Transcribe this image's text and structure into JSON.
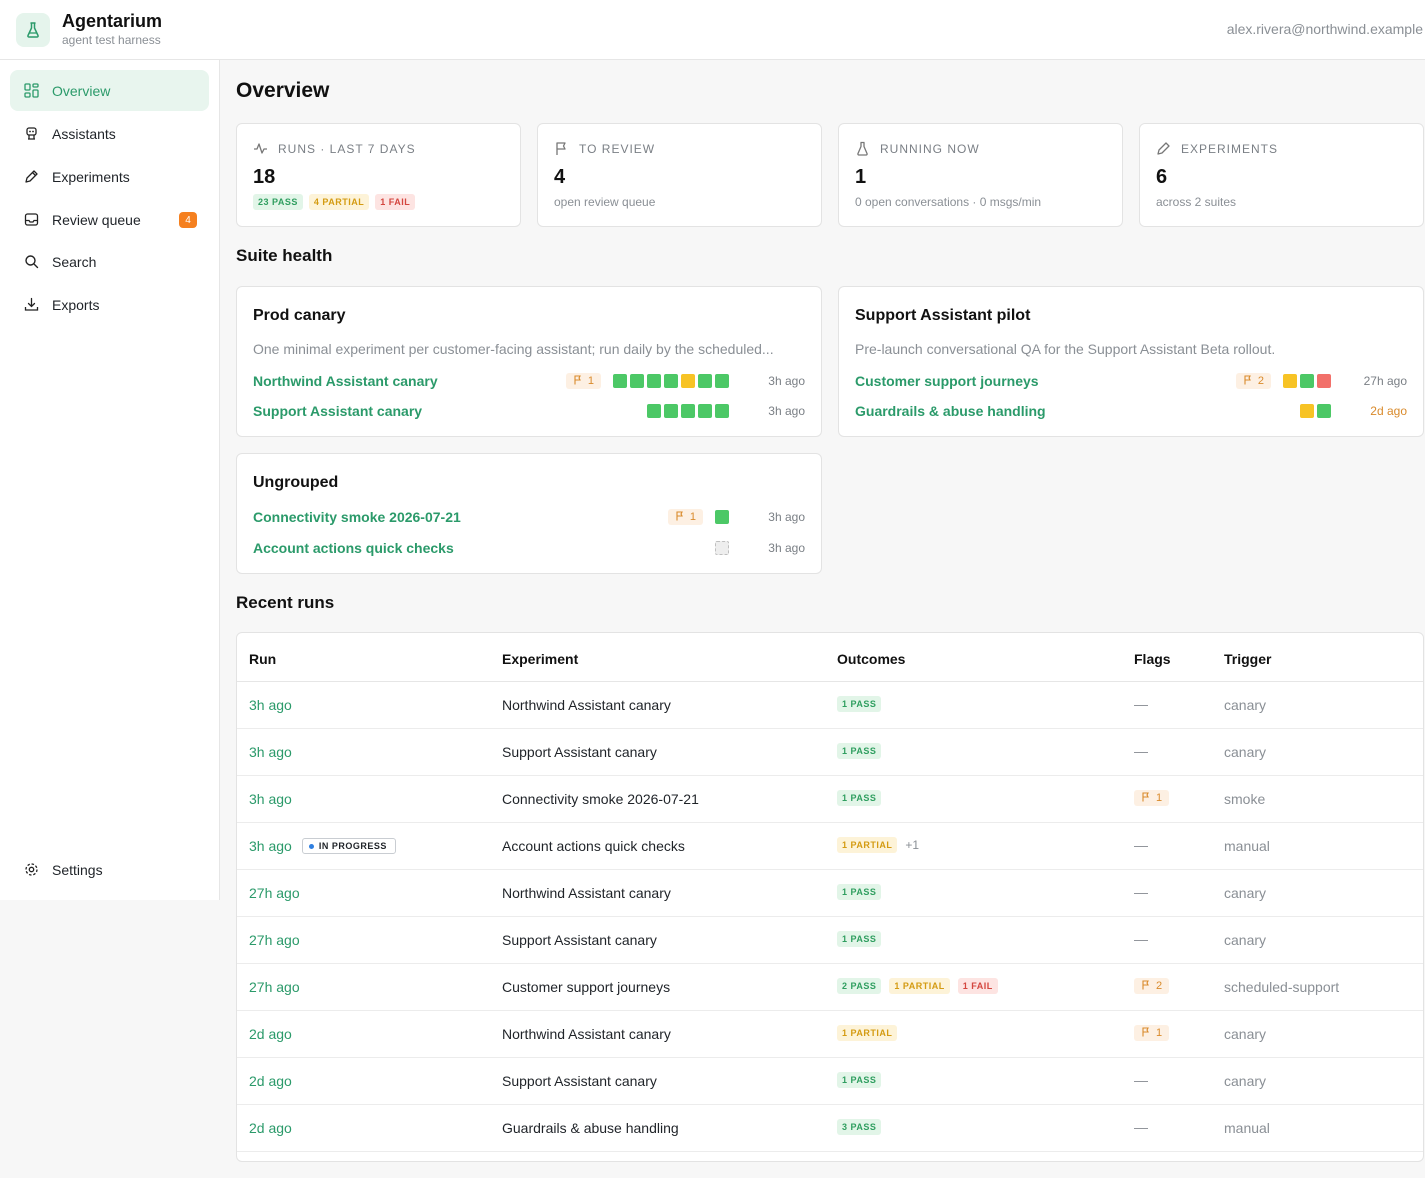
{
  "app": {
    "title": "Agentarium",
    "subtitle": "agent test harness",
    "user_email": "alex.rivera@northwind.example"
  },
  "sidebar": {
    "items": [
      {
        "label": "Overview",
        "icon": "dashboard-icon",
        "active": true
      },
      {
        "label": "Assistants",
        "icon": "robot-icon"
      },
      {
        "label": "Experiments",
        "icon": "pen-icon"
      },
      {
        "label": "Review queue",
        "icon": "inbox-icon",
        "badge": "4"
      },
      {
        "label": "Search",
        "icon": "search-icon"
      },
      {
        "label": "Exports",
        "icon": "download-icon"
      }
    ],
    "settings_label": "Settings"
  },
  "page": {
    "title": "Overview"
  },
  "stats": [
    {
      "label": "Runs · last 7 days",
      "icon": "activity-icon",
      "value": "18",
      "pills": [
        "23 PASS",
        "4 PARTIAL",
        "1 FAIL"
      ]
    },
    {
      "label": "To review",
      "icon": "flag-icon",
      "value": "4",
      "sub": "open review queue"
    },
    {
      "label": "Running now",
      "icon": "flask-icon",
      "value": "1",
      "sub": "0 open conversations · 0 msgs/min"
    },
    {
      "label": "Experiments",
      "icon": "pen-icon",
      "value": "6",
      "sub": "across 2 suites"
    }
  ],
  "suite_health": {
    "title": "Suite health",
    "suites": [
      {
        "name": "Prod canary",
        "description": "One minimal experiment per customer-facing assistant; run daily by the scheduled...",
        "experiments": [
          {
            "name": "Northwind Assistant canary",
            "flags": "1",
            "outcomes": [
              "pass",
              "pass",
              "pass",
              "pass",
              "partial",
              "pass",
              "pass"
            ],
            "time": "3h ago"
          },
          {
            "name": "Support Assistant canary",
            "outcomes": [
              "pass",
              "pass",
              "pass",
              "pass",
              "pass"
            ],
            "time": "3h ago"
          }
        ]
      },
      {
        "name": "Support Assistant pilot",
        "description": "Pre-launch conversational QA for the Support Assistant Beta rollout.",
        "experiments": [
          {
            "name": "Customer support journeys",
            "flags": "2",
            "outcomes": [
              "partial",
              "pass",
              "fail"
            ],
            "time": "27h ago"
          },
          {
            "name": "Guardrails & abuse handling",
            "outcomes": [
              "partial",
              "pass"
            ],
            "time": "2d ago",
            "stale": true
          }
        ]
      },
      {
        "name": "Ungrouped",
        "experiments": [
          {
            "name": "Connectivity smoke 2026-07-21",
            "flags": "1",
            "outcomes": [
              "pass"
            ],
            "time": "3h ago"
          },
          {
            "name": "Account actions quick checks",
            "outcomes": [
              "none"
            ],
            "time": "3h ago"
          }
        ]
      }
    ]
  },
  "recent_runs": {
    "title": "Recent runs",
    "columns": [
      "Run",
      "Experiment",
      "Outcomes",
      "Flags",
      "Trigger"
    ],
    "in_progress_label": "IN PROGRESS",
    "rows": [
      {
        "run": "3h ago",
        "experiment": "Northwind Assistant canary",
        "outcomes": [
          {
            "t": "1 PASS",
            "k": "pass"
          }
        ],
        "flags": "—",
        "trigger": "canary"
      },
      {
        "run": "3h ago",
        "experiment": "Support Assistant canary",
        "outcomes": [
          {
            "t": "1 PASS",
            "k": "pass"
          }
        ],
        "flags": "—",
        "trigger": "canary"
      },
      {
        "run": "3h ago",
        "experiment": "Connectivity smoke 2026-07-21",
        "outcomes": [
          {
            "t": "1 PASS",
            "k": "pass"
          }
        ],
        "flags": "1",
        "trigger": "smoke"
      },
      {
        "run": "3h ago",
        "in_progress": true,
        "experiment": "Account actions quick checks",
        "outcomes": [
          {
            "t": "1 PARTIAL",
            "k": "partial"
          }
        ],
        "extra": "+1",
        "flags": "—",
        "trigger": "manual"
      },
      {
        "run": "27h ago",
        "experiment": "Northwind Assistant canary",
        "outcomes": [
          {
            "t": "1 PASS",
            "k": "pass"
          }
        ],
        "flags": "—",
        "trigger": "canary"
      },
      {
        "run": "27h ago",
        "experiment": "Support Assistant canary",
        "outcomes": [
          {
            "t": "1 PASS",
            "k": "pass"
          }
        ],
        "flags": "—",
        "trigger": "canary"
      },
      {
        "run": "27h ago",
        "experiment": "Customer support journeys",
        "outcomes": [
          {
            "t": "2 PASS",
            "k": "pass"
          },
          {
            "t": "1 PARTIAL",
            "k": "partial"
          },
          {
            "t": "1 FAIL",
            "k": "fail"
          }
        ],
        "flags": "2",
        "trigger": "scheduled-support"
      },
      {
        "run": "2d ago",
        "experiment": "Northwind Assistant canary",
        "outcomes": [
          {
            "t": "1 PARTIAL",
            "k": "partial"
          }
        ],
        "flags": "1",
        "trigger": "canary"
      },
      {
        "run": "2d ago",
        "experiment": "Support Assistant canary",
        "outcomes": [
          {
            "t": "1 PASS",
            "k": "pass"
          }
        ],
        "flags": "—",
        "trigger": "canary"
      },
      {
        "run": "2d ago",
        "experiment": "Guardrails & abuse handling",
        "outcomes": [
          {
            "t": "3 PASS",
            "k": "pass"
          }
        ],
        "flags": "—",
        "trigger": "manual"
      }
    ]
  },
  "colors": {
    "accent": "#2b9a6a",
    "pass": "#4cc866",
    "partial": "#f7c325",
    "fail": "#f2706a",
    "badge": "#f5801f"
  }
}
